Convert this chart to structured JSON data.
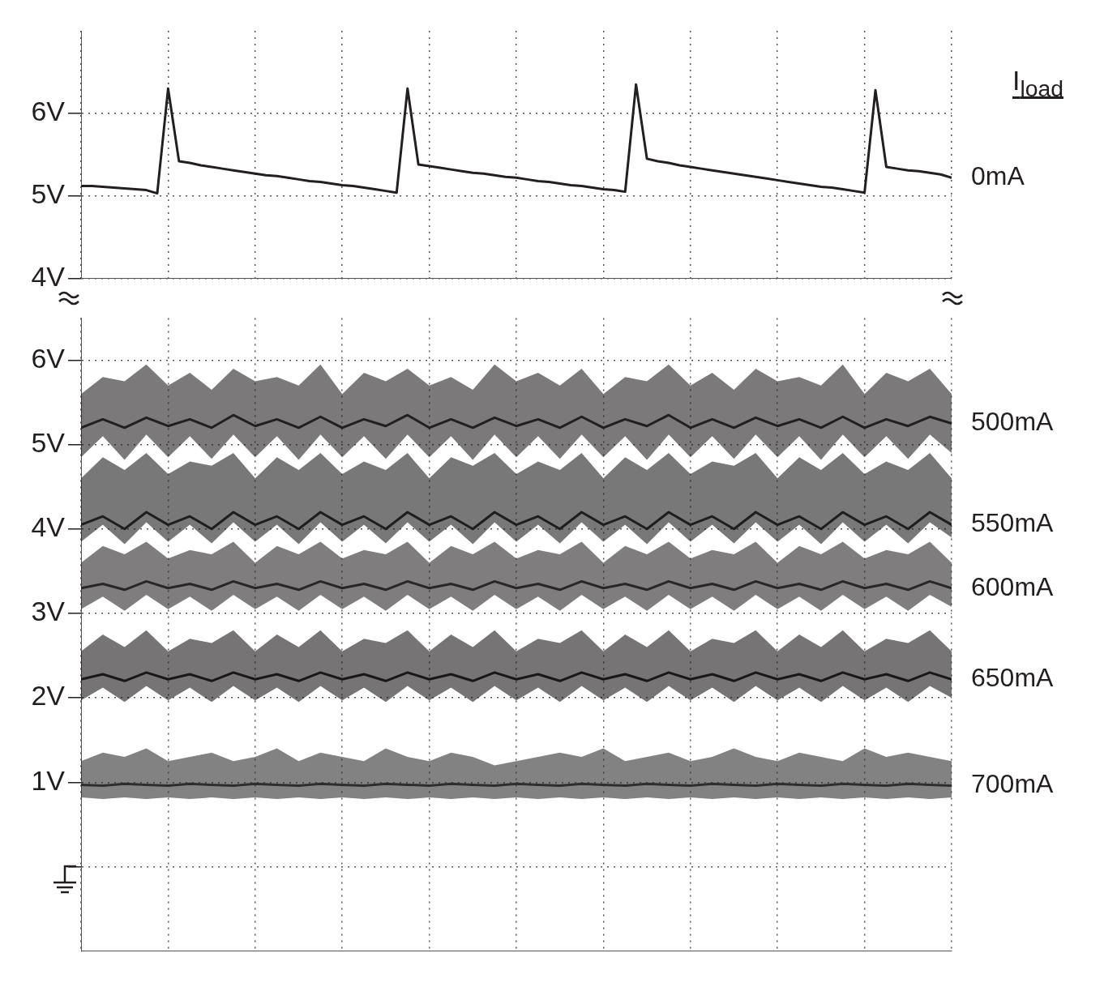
{
  "chart_data": [
    {
      "type": "line",
      "legend_title": "I$_{load}$",
      "categories": [
        null,
        null,
        null,
        null,
        null,
        null,
        null,
        null,
        null,
        null,
        null,
        null,
        null,
        null,
        null,
        null,
        null,
        null,
        null,
        null,
        null,
        null,
        null,
        null,
        null,
        null,
        null,
        null,
        null,
        null,
        null,
        null,
        null,
        null,
        null,
        null,
        null,
        null,
        null,
        null,
        null,
        null,
        null,
        null,
        null,
        null,
        null,
        null,
        null,
        null,
        null,
        null,
        null,
        null,
        null,
        null,
        null,
        null,
        null,
        null,
        null,
        null,
        null,
        null,
        null,
        null,
        null,
        null,
        null,
        null,
        null,
        null,
        null,
        null,
        null,
        null,
        null,
        null,
        null,
        null,
        null
      ],
      "series": [
        {
          "name": "0mA",
          "color": "#231f20",
          "values": [
            5.12,
            5.12,
            5.11,
            5.1,
            5.09,
            5.08,
            5.07,
            5.03,
            6.3,
            5.42,
            5.4,
            5.37,
            5.35,
            5.33,
            5.31,
            5.29,
            5.27,
            5.25,
            5.24,
            5.22,
            5.2,
            5.18,
            5.17,
            5.15,
            5.13,
            5.12,
            5.1,
            5.08,
            5.06,
            5.04,
            6.3,
            5.38,
            5.36,
            5.34,
            5.32,
            5.3,
            5.28,
            5.27,
            5.25,
            5.23,
            5.22,
            5.2,
            5.18,
            5.17,
            5.15,
            5.13,
            5.12,
            5.1,
            5.08,
            5.07,
            5.05,
            6.35,
            5.45,
            5.42,
            5.4,
            5.37,
            5.35,
            5.33,
            5.31,
            5.29,
            5.27,
            5.25,
            5.23,
            5.21,
            5.19,
            5.17,
            5.15,
            5.13,
            5.11,
            5.1,
            5.08,
            5.06,
            5.04,
            6.28,
            5.35,
            5.33,
            5.31,
            5.3,
            5.28,
            5.26,
            5.22
          ]
        }
      ],
      "ylim": [
        4,
        7
      ],
      "yticks": [
        {
          "value": 4,
          "label": "4V"
        },
        {
          "value": 5,
          "label": "5V"
        },
        {
          "value": 6,
          "label": "6V"
        }
      ],
      "grid": true,
      "tick_labels": "y",
      "line_style": "solid",
      "marker": "none"
    },
    {
      "type": "line",
      "categories": [
        null,
        null,
        null,
        null,
        null,
        null,
        null,
        null,
        null,
        null,
        null,
        null,
        null,
        null,
        null,
        null,
        null,
        null,
        null,
        null,
        null,
        null,
        null,
        null,
        null,
        null,
        null,
        null,
        null,
        null,
        null,
        null,
        null,
        null,
        null,
        null,
        null,
        null,
        null,
        null,
        null
      ],
      "series": [
        {
          "name": "500mA",
          "color": "#231f20",
          "values": [
            5.2,
            5.3,
            5.2,
            5.32,
            5.22,
            5.3,
            5.2,
            5.35,
            5.22,
            5.3,
            5.2,
            5.33,
            5.2,
            5.3,
            5.22,
            5.35,
            5.2,
            5.3,
            5.2,
            5.32,
            5.22,
            5.3,
            5.2,
            5.33,
            5.2,
            5.3,
            5.22,
            5.35,
            5.2,
            5.3,
            5.2,
            5.32,
            5.22,
            5.3,
            5.2,
            5.33,
            5.2,
            5.3,
            5.22,
            5.33,
            5.25
          ],
          "lower": [
            4.85,
            5.1,
            4.82,
            5.12,
            4.85,
            5.1,
            4.83,
            5.12,
            4.85,
            5.1,
            4.82,
            5.12,
            4.85,
            5.1,
            4.83,
            5.12,
            4.85,
            5.1,
            4.82,
            5.12,
            4.85,
            5.1,
            4.83,
            5.12,
            4.85,
            5.1,
            4.82,
            5.12,
            4.85,
            5.1,
            4.83,
            5.12,
            4.85,
            5.1,
            4.82,
            5.12,
            4.85,
            5.1,
            4.83,
            5.12,
            4.9
          ],
          "upper": [
            5.6,
            5.8,
            5.75,
            5.95,
            5.7,
            5.85,
            5.65,
            5.9,
            5.75,
            5.8,
            5.7,
            5.95,
            5.6,
            5.85,
            5.75,
            5.9,
            5.7,
            5.8,
            5.65,
            5.95,
            5.75,
            5.85,
            5.7,
            5.9,
            5.6,
            5.8,
            5.75,
            5.95,
            5.7,
            5.85,
            5.65,
            5.9,
            5.75,
            5.8,
            5.7,
            5.95,
            5.6,
            5.85,
            5.75,
            5.9,
            5.6
          ]
        },
        {
          "name": "550mA",
          "color": "#1e1e1e",
          "values": [
            4.05,
            4.15,
            4.0,
            4.2,
            4.05,
            4.15,
            4.0,
            4.2,
            4.05,
            4.15,
            4.0,
            4.2,
            4.05,
            4.15,
            4.0,
            4.2,
            4.05,
            4.15,
            4.0,
            4.2,
            4.05,
            4.15,
            4.0,
            4.2,
            4.05,
            4.15,
            4.0,
            4.2,
            4.05,
            4.15,
            4.0,
            4.2,
            4.05,
            4.15,
            4.0,
            4.2,
            4.05,
            4.15,
            4.0,
            4.2,
            4.05
          ],
          "lower": [
            3.85,
            4.05,
            3.82,
            4.08,
            3.85,
            4.05,
            3.83,
            4.08,
            3.85,
            4.05,
            3.82,
            4.08,
            3.85,
            4.05,
            3.83,
            4.08,
            3.85,
            4.05,
            3.82,
            4.08,
            3.85,
            4.05,
            3.83,
            4.08,
            3.85,
            4.05,
            3.82,
            4.08,
            3.85,
            4.05,
            3.83,
            4.08,
            3.85,
            4.05,
            3.82,
            4.08,
            3.85,
            4.05,
            3.83,
            4.08,
            3.9
          ],
          "upper": [
            4.6,
            4.85,
            4.7,
            4.9,
            4.65,
            4.8,
            4.75,
            4.9,
            4.6,
            4.85,
            4.7,
            4.9,
            4.65,
            4.8,
            4.7,
            4.9,
            4.6,
            4.85,
            4.75,
            4.9,
            4.65,
            4.8,
            4.7,
            4.9,
            4.6,
            4.85,
            4.7,
            4.9,
            4.65,
            4.8,
            4.75,
            4.9,
            4.6,
            4.85,
            4.7,
            4.9,
            4.65,
            4.8,
            4.7,
            4.9,
            4.6
          ]
        },
        {
          "name": "600mA",
          "color": "#2a2627",
          "values": [
            3.3,
            3.35,
            3.28,
            3.38,
            3.3,
            3.35,
            3.28,
            3.38,
            3.3,
            3.35,
            3.28,
            3.38,
            3.3,
            3.35,
            3.28,
            3.38,
            3.3,
            3.35,
            3.28,
            3.38,
            3.3,
            3.35,
            3.28,
            3.38,
            3.3,
            3.35,
            3.28,
            3.38,
            3.3,
            3.35,
            3.28,
            3.38,
            3.3,
            3.35,
            3.28,
            3.38,
            3.3,
            3.35,
            3.28,
            3.38,
            3.3
          ],
          "lower": [
            3.05,
            3.2,
            3.03,
            3.22,
            3.05,
            3.2,
            3.03,
            3.22,
            3.05,
            3.2,
            3.03,
            3.22,
            3.05,
            3.2,
            3.03,
            3.22,
            3.05,
            3.2,
            3.03,
            3.22,
            3.05,
            3.2,
            3.03,
            3.22,
            3.05,
            3.2,
            3.03,
            3.22,
            3.05,
            3.2,
            3.03,
            3.22,
            3.05,
            3.2,
            3.03,
            3.22,
            3.05,
            3.2,
            3.03,
            3.22,
            3.08
          ],
          "upper": [
            3.6,
            3.8,
            3.7,
            3.85,
            3.65,
            3.75,
            3.7,
            3.85,
            3.6,
            3.8,
            3.7,
            3.85,
            3.65,
            3.75,
            3.7,
            3.85,
            3.6,
            3.8,
            3.7,
            3.85,
            3.65,
            3.75,
            3.7,
            3.85,
            3.6,
            3.8,
            3.7,
            3.85,
            3.65,
            3.75,
            3.7,
            3.85,
            3.6,
            3.8,
            3.7,
            3.85,
            3.65,
            3.75,
            3.7,
            3.85,
            3.6
          ]
        },
        {
          "name": "650mA",
          "color": "#1a1718",
          "values": [
            2.22,
            2.28,
            2.2,
            2.3,
            2.22,
            2.28,
            2.2,
            2.3,
            2.22,
            2.28,
            2.2,
            2.3,
            2.22,
            2.28,
            2.2,
            2.3,
            2.22,
            2.28,
            2.2,
            2.3,
            2.22,
            2.28,
            2.2,
            2.3,
            2.22,
            2.28,
            2.2,
            2.3,
            2.22,
            2.28,
            2.2,
            2.3,
            2.22,
            2.28,
            2.2,
            2.3,
            2.22,
            2.28,
            2.2,
            2.3,
            2.22
          ],
          "lower": [
            1.97,
            2.12,
            1.95,
            2.14,
            1.97,
            2.12,
            1.95,
            2.14,
            1.97,
            2.12,
            1.95,
            2.14,
            1.97,
            2.12,
            1.95,
            2.14,
            1.97,
            2.12,
            1.95,
            2.14,
            1.97,
            2.12,
            1.95,
            2.14,
            1.97,
            2.12,
            1.95,
            2.14,
            1.97,
            2.12,
            1.95,
            2.14,
            1.97,
            2.12,
            1.95,
            2.14,
            1.97,
            2.12,
            1.95,
            2.14,
            2.0
          ],
          "upper": [
            2.55,
            2.75,
            2.6,
            2.8,
            2.55,
            2.7,
            2.65,
            2.8,
            2.55,
            2.75,
            2.6,
            2.8,
            2.55,
            2.7,
            2.65,
            2.8,
            2.55,
            2.75,
            2.6,
            2.8,
            2.55,
            2.7,
            2.65,
            2.8,
            2.55,
            2.75,
            2.6,
            2.8,
            2.55,
            2.7,
            2.65,
            2.8,
            2.55,
            2.75,
            2.6,
            2.8,
            2.55,
            2.7,
            2.65,
            2.8,
            2.55
          ]
        },
        {
          "name": "700mA",
          "color": "#2e2e2e",
          "values": [
            0.97,
            0.96,
            0.98,
            0.97,
            0.96,
            0.98,
            0.97,
            0.96,
            0.98,
            0.97,
            0.96,
            0.98,
            0.97,
            0.96,
            0.98,
            0.97,
            0.96,
            0.98,
            0.97,
            0.96,
            0.98,
            0.97,
            0.96,
            0.98,
            0.97,
            0.96,
            0.98,
            0.97,
            0.96,
            0.98,
            0.97,
            0.96,
            0.98,
            0.97,
            0.96,
            0.98,
            0.97,
            0.96,
            0.98,
            0.97,
            0.96
          ],
          "lower": [
            0.82,
            0.8,
            0.82,
            0.8,
            0.82,
            0.8,
            0.82,
            0.8,
            0.82,
            0.8,
            0.82,
            0.8,
            0.82,
            0.8,
            0.82,
            0.8,
            0.82,
            0.8,
            0.82,
            0.8,
            0.82,
            0.8,
            0.82,
            0.8,
            0.82,
            0.8,
            0.82,
            0.8,
            0.82,
            0.8,
            0.82,
            0.8,
            0.82,
            0.8,
            0.82,
            0.8,
            0.82,
            0.8,
            0.82,
            0.8,
            0.82
          ],
          "upper": [
            1.25,
            1.35,
            1.3,
            1.4,
            1.25,
            1.3,
            1.35,
            1.25,
            1.3,
            1.4,
            1.25,
            1.35,
            1.3,
            1.25,
            1.4,
            1.3,
            1.25,
            1.35,
            1.3,
            1.2,
            1.25,
            1.3,
            1.35,
            1.3,
            1.4,
            1.25,
            1.3,
            1.35,
            1.25,
            1.3,
            1.4,
            1.3,
            1.25,
            1.35,
            1.3,
            1.25,
            1.4,
            1.3,
            1.35,
            1.3,
            1.25
          ]
        }
      ],
      "ylim": [
        -1,
        6.5
      ],
      "yticks": [
        {
          "value": 0,
          "label": null
        },
        {
          "value": 1,
          "label": "1V"
        },
        {
          "value": 2,
          "label": "2V"
        },
        {
          "value": 3,
          "label": "3V"
        },
        {
          "value": 4,
          "label": "4V"
        },
        {
          "value": 5,
          "label": "5V"
        },
        {
          "value": 6,
          "label": "6V"
        }
      ],
      "grid": true,
      "tick_labels": "y",
      "line_style": "solid",
      "marker": "none"
    }
  ]
}
